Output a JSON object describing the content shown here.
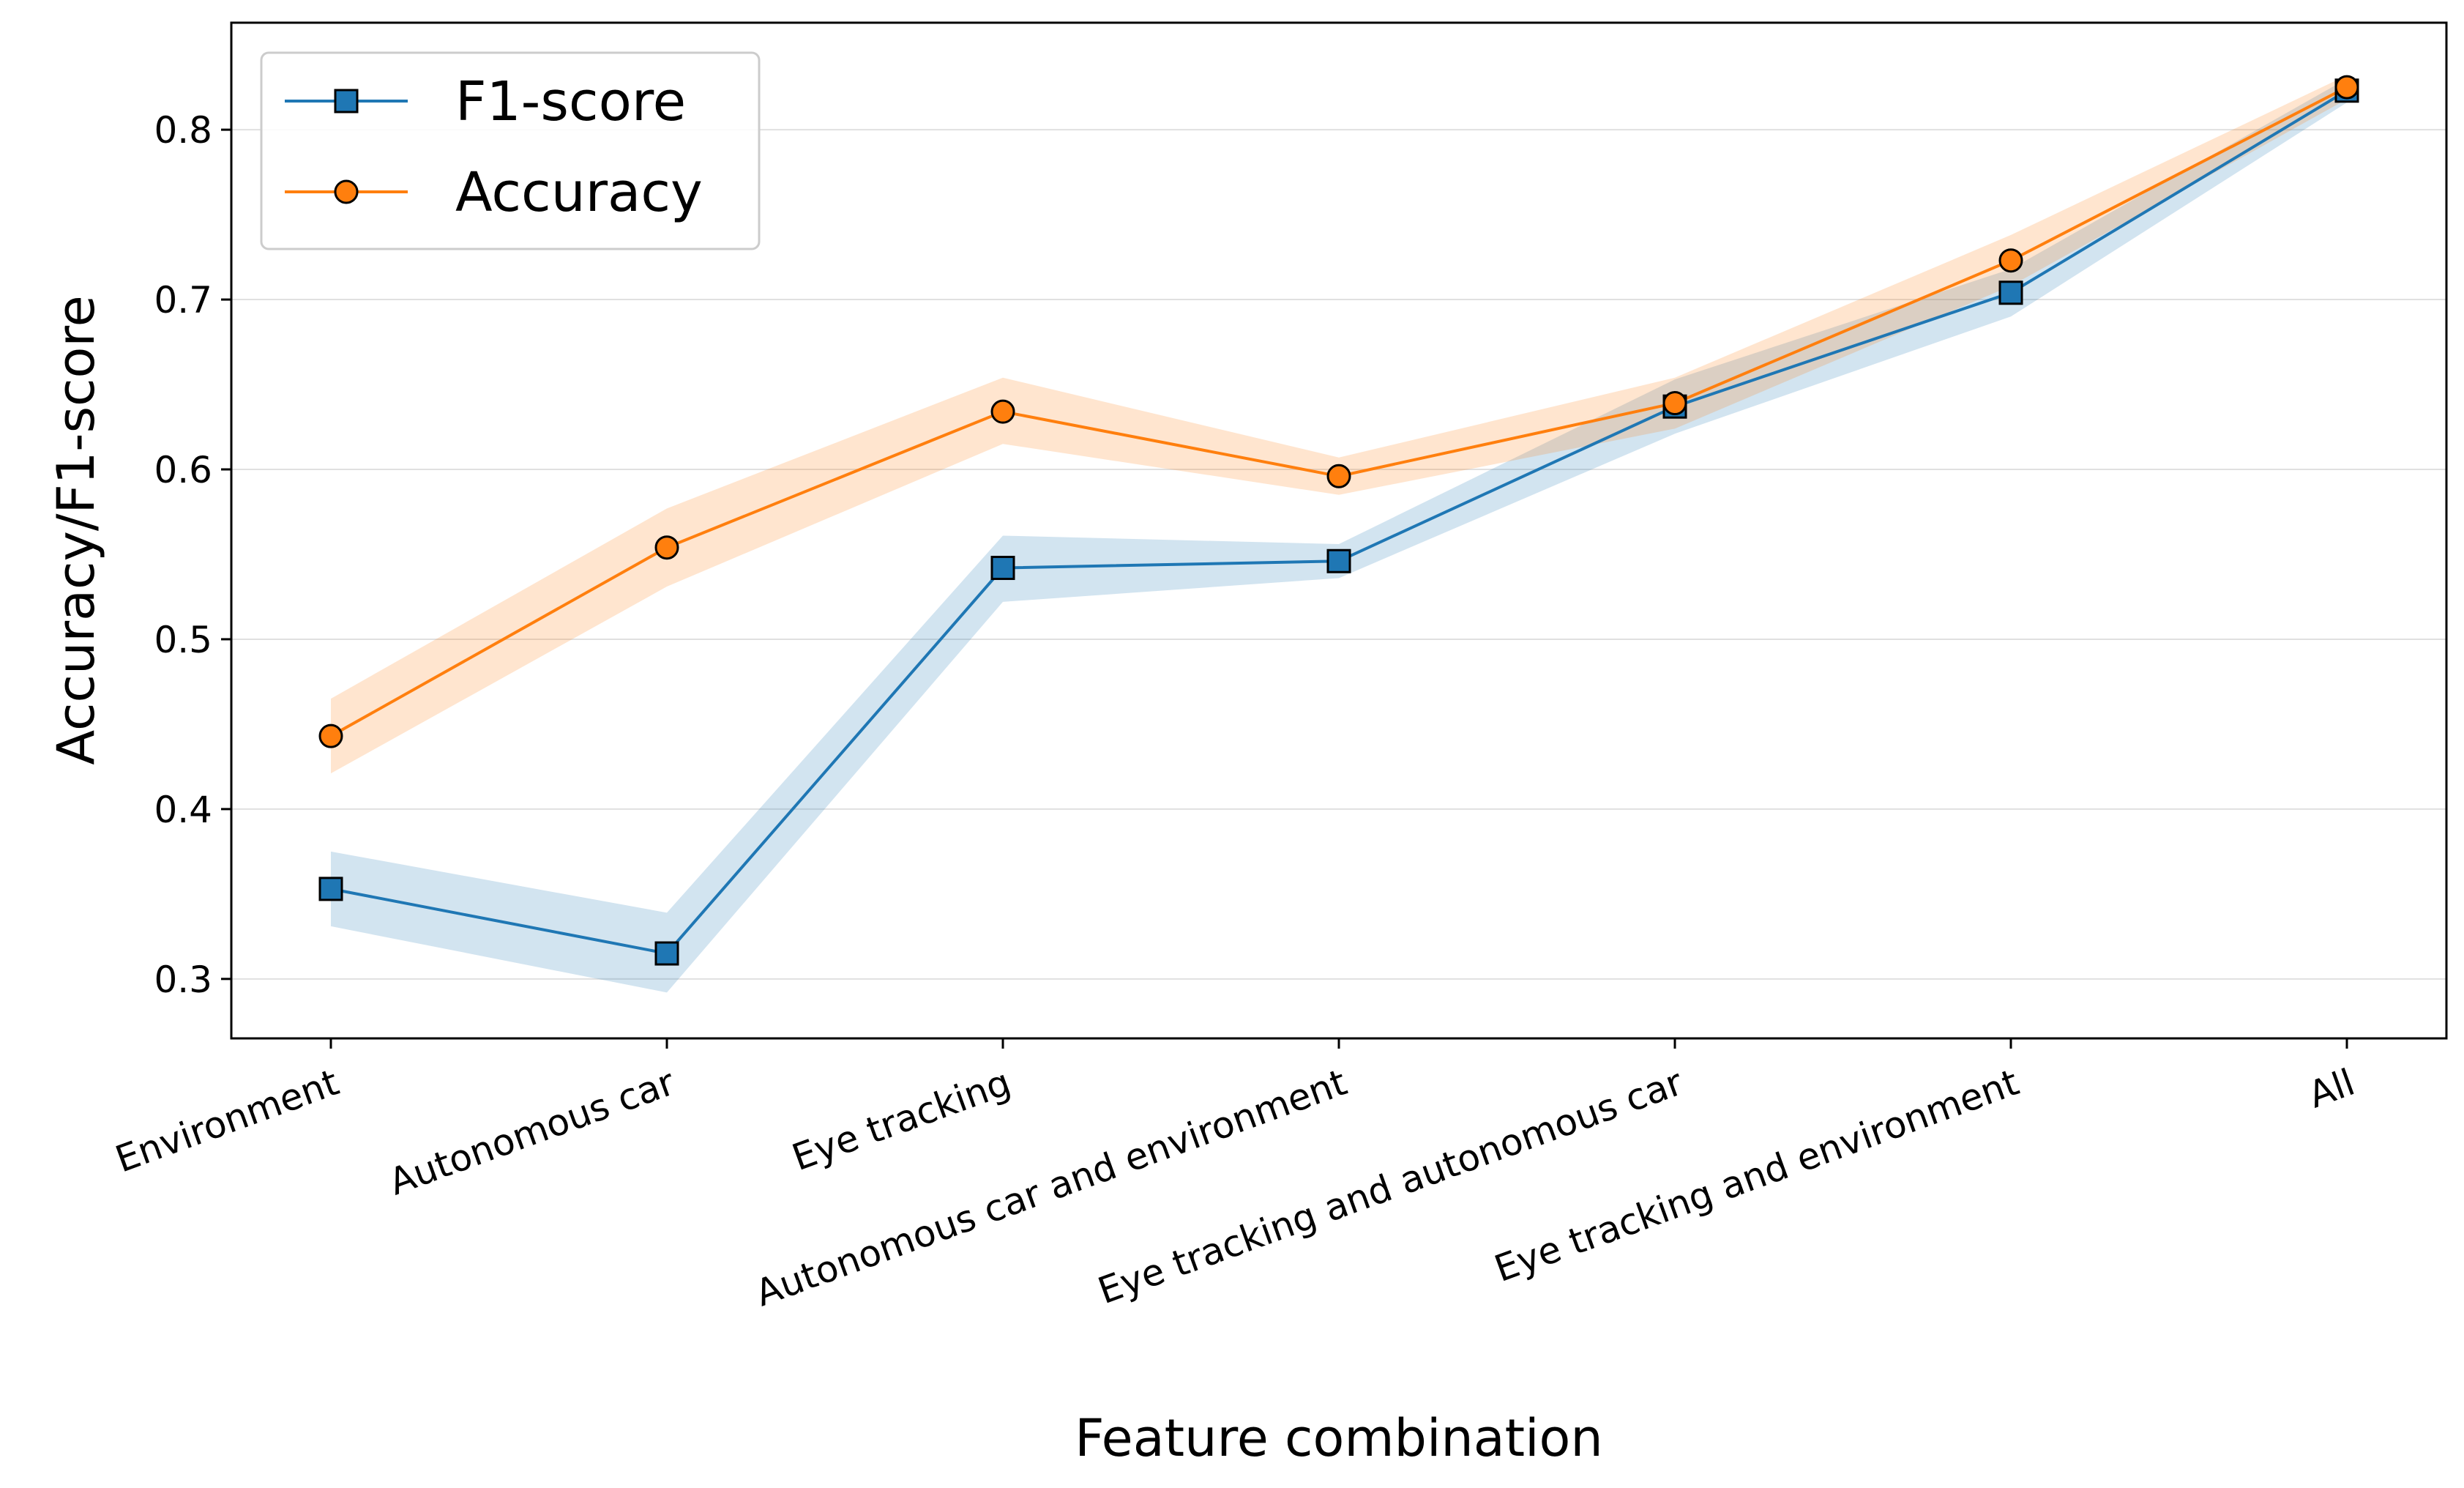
{
  "chart_data": {
    "type": "line",
    "title": "",
    "xlabel": "Feature combination",
    "ylabel": "Accuracy/F1-score",
    "categories": [
      "Environment",
      "Autonomous car",
      "Eye tracking",
      "Autonomous car and environment",
      "Eye tracking and autonomous car",
      "Eye tracking and environment",
      "All"
    ],
    "ylim": [
      0.265,
      0.863
    ],
    "yticks": [
      0.3,
      0.4,
      0.5,
      0.6,
      0.7,
      0.8
    ],
    "ytick_labels": [
      "0.3",
      "0.4",
      "0.5",
      "0.6",
      "0.7",
      "0.8"
    ],
    "grid": "horizontal",
    "legend_position": "top-left",
    "series": [
      {
        "name": "F1-score",
        "color": "#1f77b4",
        "band_color": "#1f77b4",
        "marker": "square",
        "values": [
          0.353,
          0.315,
          0.542,
          0.546,
          0.637,
          0.704,
          0.823
        ],
        "lower": [
          0.331,
          0.292,
          0.522,
          0.536,
          0.621,
          0.69,
          0.816
        ],
        "upper": [
          0.375,
          0.339,
          0.561,
          0.556,
          0.653,
          0.718,
          0.83
        ]
      },
      {
        "name": "Accuracy",
        "color": "#ff7f0e",
        "band_color": "#ff7f0e",
        "marker": "circle",
        "values": [
          0.443,
          0.554,
          0.634,
          0.596,
          0.639,
          0.723,
          0.825
        ],
        "lower": [
          0.421,
          0.531,
          0.615,
          0.585,
          0.624,
          0.708,
          0.818
        ],
        "upper": [
          0.465,
          0.577,
          0.654,
          0.607,
          0.654,
          0.738,
          0.832
        ]
      }
    ]
  }
}
